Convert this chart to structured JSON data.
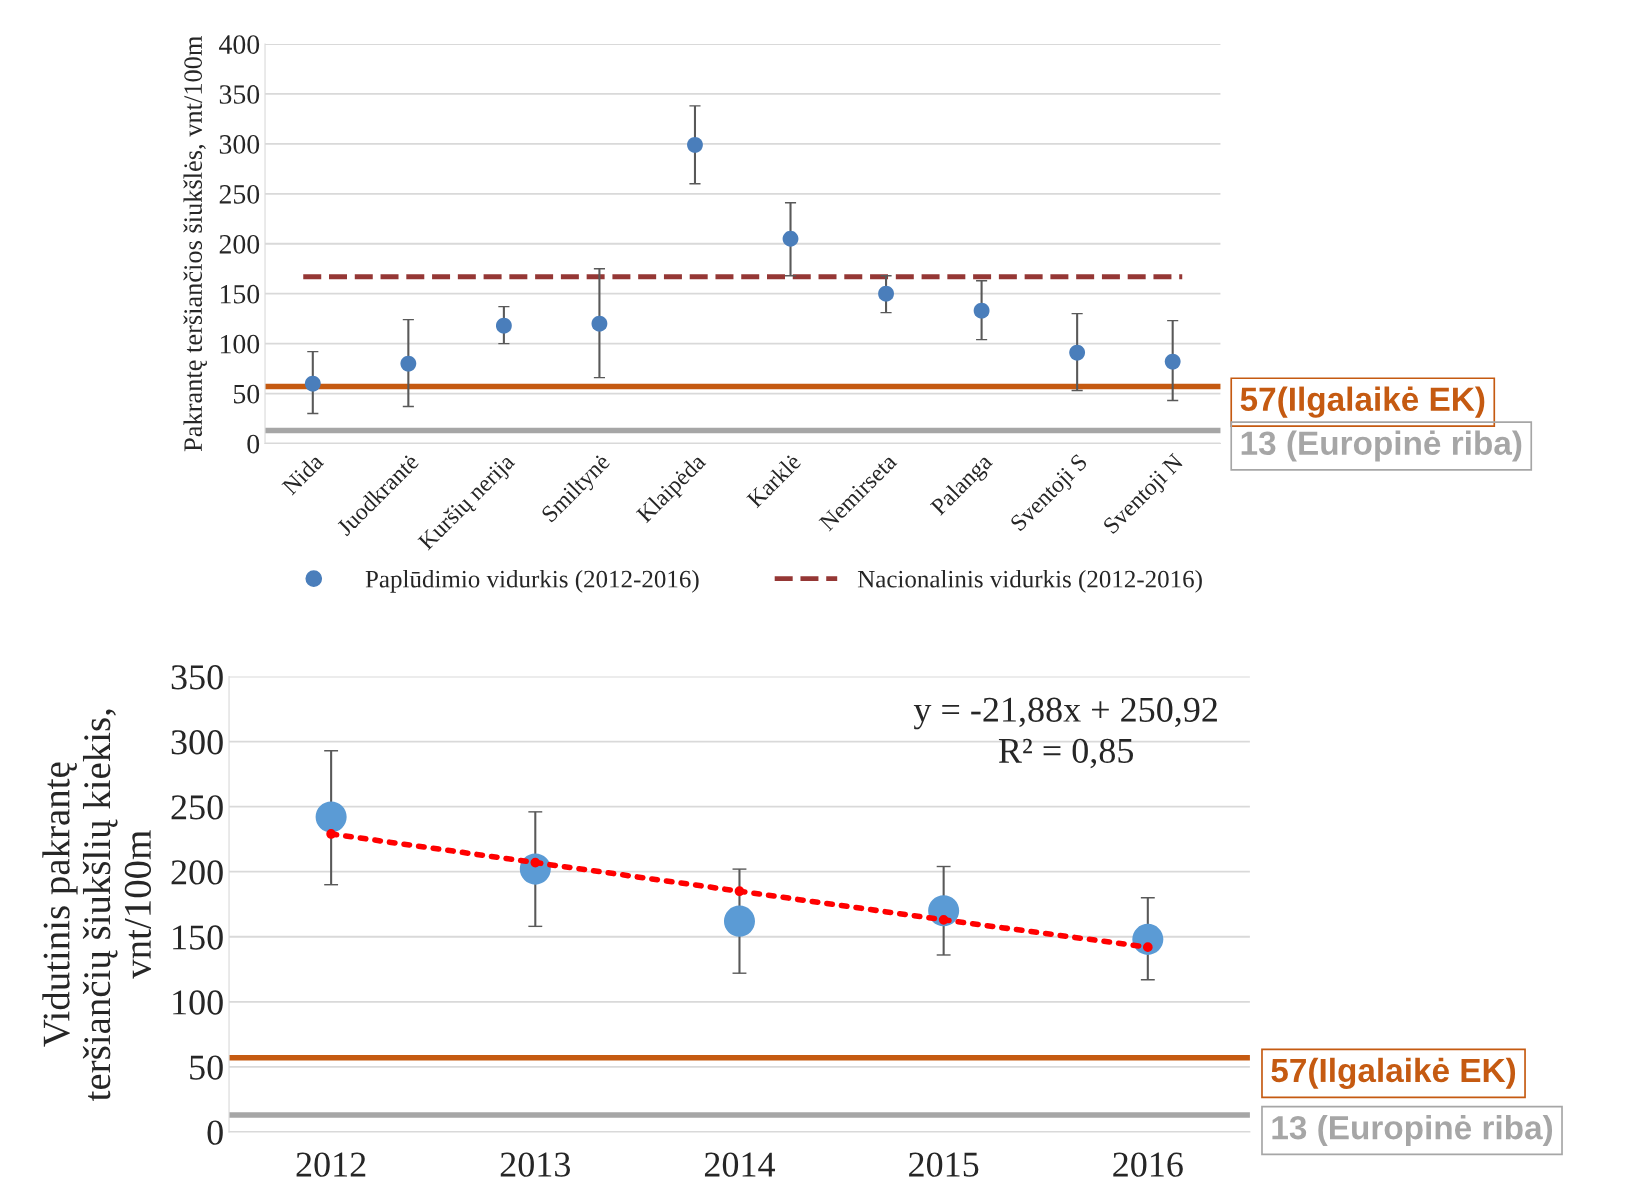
{
  "chart_data": [
    {
      "type": "scatter",
      "ylabel": "Pakrantę teršiančios šiukšlės, vnt/100m",
      "categories": [
        "Nida",
        "Juodkrantė",
        "Kuršių nerija",
        "Smiltynė",
        "Klaipėda",
        "Karklė",
        "Nemirseta",
        "Palanga",
        "Sventoji S",
        "Sventoji N"
      ],
      "series": [
        {
          "name": "Paplūdimio vidurkis (2012-2016)",
          "color": "#4a7ebb",
          "values": [
            60,
            80,
            118,
            120,
            299,
            205,
            150,
            133,
            91,
            82
          ],
          "errors": [
            [
              30,
              92
            ],
            [
              37,
              124
            ],
            [
              100,
              137
            ],
            [
              66,
              175
            ],
            [
              260,
              338
            ],
            [
              168,
              241
            ],
            [
              131,
              168
            ],
            [
              104,
              163
            ],
            [
              53,
              130
            ],
            [
              43,
              123
            ]
          ]
        }
      ],
      "ref_lines": [
        {
          "axis": "y",
          "value": 167,
          "label": "Nacionalinis vidurkis (2012-2016)",
          "color": "#953735",
          "line_style": "dashed"
        },
        {
          "axis": "y",
          "value": 57,
          "label": "57(Ilgalaikė EK)",
          "color": "#c55a11",
          "line_style": "solid"
        },
        {
          "axis": "y",
          "value": 13,
          "label": "13 (Europinė riba)",
          "color": "#a6a6a6",
          "line_style": "solid"
        }
      ],
      "ylim": [
        0,
        400
      ],
      "yticks": [
        0,
        50,
        100,
        150,
        200,
        250,
        300,
        350,
        400
      ],
      "grid": "y",
      "legend": "bottom",
      "marker": "circle"
    },
    {
      "type": "scatter",
      "ylabel": "Vidutinis pakrantę\nteršiančių šiukšlių kiekis,\nvnt/100m",
      "categories": [
        "2012",
        "2013",
        "2014",
        "2015",
        "2016"
      ],
      "series": [
        {
          "color": "#5b9bd5",
          "values": [
            242,
            202,
            162,
            170,
            148
          ],
          "errors": [
            [
              190,
              293
            ],
            [
              158,
              246
            ],
            [
              122,
              202
            ],
            [
              136,
              204
            ],
            [
              117,
              180
            ]
          ]
        },
        {
          "type": "line",
          "color": "#ff0000",
          "line_style": "dotted",
          "values": [
            229,
            207,
            185,
            163,
            142
          ]
        }
      ],
      "annotations": [
        "y = -21,88x + 250,92",
        "R² = 0,85"
      ],
      "ref_lines": [
        {
          "axis": "y",
          "value": 57,
          "label": "57(Ilgalaikė EK)",
          "color": "#c55a11",
          "line_style": "solid"
        },
        {
          "axis": "y",
          "value": 13,
          "label": "13 (Europinė riba)",
          "color": "#a6a6a6",
          "line_style": "solid"
        }
      ],
      "ylim": [
        0,
        350
      ],
      "yticks": [
        0,
        50,
        100,
        150,
        200,
        250,
        300,
        350
      ],
      "grid": "y",
      "marker": "circle"
    }
  ]
}
